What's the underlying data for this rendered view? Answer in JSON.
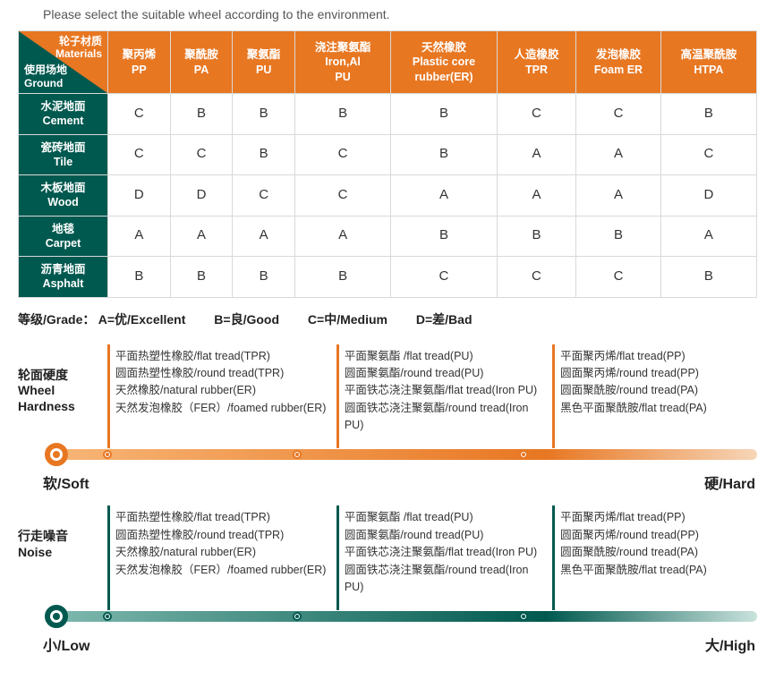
{
  "intro": "Please select the suitable wheel according to the environment.",
  "corner": {
    "top_cn": "轮子材质",
    "top_en": "Materials",
    "bot_cn": "使用场地",
    "bot_en": "Ground"
  },
  "materials": [
    {
      "cn": "聚丙烯",
      "en": "PP"
    },
    {
      "cn": "聚酰胺",
      "en": "PA"
    },
    {
      "cn": "聚氨酯",
      "en": "PU"
    },
    {
      "cn": "浇注聚氨酯",
      "en": "Iron,Al\nPU"
    },
    {
      "cn": "天然橡胶",
      "en": "Plastic core\nrubber(ER)"
    },
    {
      "cn": "人造橡胶",
      "en": "TPR"
    },
    {
      "cn": "发泡橡胶",
      "en": "Foam ER"
    },
    {
      "cn": "高温聚酰胺",
      "en": "HTPA"
    }
  ],
  "grounds": [
    {
      "cn": "水泥地面",
      "en": "Cement",
      "v": [
        "C",
        "B",
        "B",
        "B",
        "B",
        "C",
        "C",
        "B"
      ]
    },
    {
      "cn": "瓷砖地面",
      "en": "Tile",
      "v": [
        "C",
        "C",
        "B",
        "C",
        "B",
        "A",
        "A",
        "C"
      ]
    },
    {
      "cn": "木板地面",
      "en": "Wood",
      "v": [
        "D",
        "D",
        "C",
        "C",
        "A",
        "A",
        "A",
        "D"
      ]
    },
    {
      "cn": "地毯",
      "en": "Carpet",
      "v": [
        "A",
        "A",
        "A",
        "A",
        "B",
        "B",
        "B",
        "A"
      ]
    },
    {
      "cn": "沥青地面",
      "en": "Asphalt",
      "v": [
        "B",
        "B",
        "B",
        "B",
        "C",
        "C",
        "C",
        "B"
      ]
    }
  ],
  "grade": {
    "prefix": "等级/Grade：",
    "items": [
      "A=优/Excellent",
      "B=良/Good",
      "C=中/Medium",
      "D=差/Bad"
    ]
  },
  "scales": [
    {
      "title_cn": "轮面硬度",
      "title_en": "Wheel\nHardness",
      "color": "orange",
      "tick_color": "#e87722",
      "left": "软/Soft",
      "right": "硬/Hard",
      "cols": [
        {
          "pos": 0.07,
          "lines": [
            "平面热塑性橡胶/flat tread(TPR)",
            "圆面热塑性橡胶/round tread(TPR)",
            "天然橡胶/natural rubber(ER)",
            "天然发泡橡胶（FER）/foamed rubber(ER)"
          ]
        },
        {
          "pos": 0.42,
          "lines": [
            "平面聚氨酯 /flat tread(PU)",
            "圆面聚氨酯/round tread(PU)",
            "平面铁芯浇注聚氨酯/flat tread(Iron PU)",
            "圆面铁芯浇注聚氨酯/round tread(Iron PU)"
          ]
        },
        {
          "pos": 0.74,
          "lines": [
            "平面聚丙烯/flat tread(PP)",
            "圆面聚丙烯/round tread(PP)",
            "圆面聚酰胺/round tread(PA)",
            "黑色平面聚酰胺/flat tread(PA)"
          ]
        }
      ]
    },
    {
      "title_cn": "行走噪音",
      "title_en": "Noise",
      "color": "green",
      "tick_color": "#00594f",
      "left": "小/Low",
      "right": "大/High",
      "cols": [
        {
          "pos": 0.07,
          "lines": [
            "平面热塑性橡胶/flat tread(TPR)",
            "圆面热塑性橡胶/round tread(TPR)",
            "天然橡胶/natural rubber(ER)",
            "天然发泡橡胶（FER）/foamed rubber(ER)"
          ]
        },
        {
          "pos": 0.42,
          "lines": [
            "平面聚氨酯 /flat tread(PU)",
            "圆面聚氨酯/round tread(PU)",
            "平面铁芯浇注聚氨酯/flat tread(Iron PU)",
            "圆面铁芯浇注聚氨酯/round tread(Iron PU)"
          ]
        },
        {
          "pos": 0.74,
          "lines": [
            "平面聚丙烯/flat tread(PP)",
            "圆面聚丙烯/round tread(PP)",
            "圆面聚酰胺/round tread(PA)",
            "黑色平面聚酰胺/flat tread(PA)"
          ]
        }
      ]
    }
  ]
}
